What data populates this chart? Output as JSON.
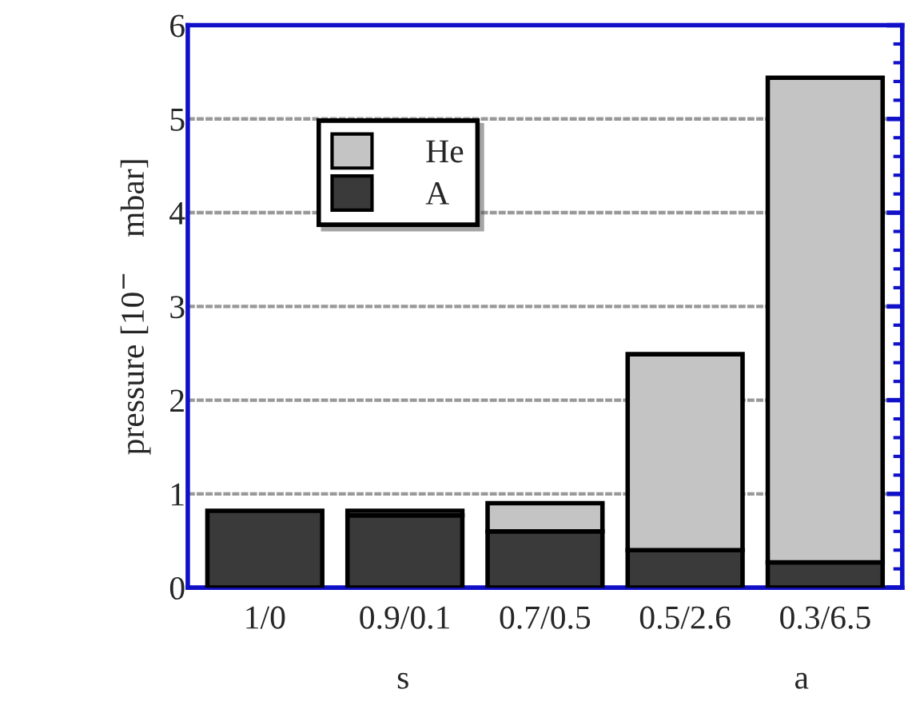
{
  "chart_data": {
    "type": "bar",
    "stacked": true,
    "categories": [
      "1/0",
      "0.9/0.1",
      "0.7/0.5",
      "0.5/2.6",
      "0.3/6.5"
    ],
    "series": [
      {
        "name": "A",
        "color": "#3a3a3a",
        "values": [
          0.82,
          0.77,
          0.6,
          0.4,
          0.27
        ]
      },
      {
        "name": "He",
        "color": "#c4c4c4",
        "values": [
          null,
          0.05,
          0.3,
          2.09,
          5.17
        ]
      }
    ],
    "ylabel": "pressure [10$^{−}$    mbar]",
    "annotations": [
      "s",
      "a"
    ],
    "ylim": [
      0,
      6
    ],
    "yticks": [
      0,
      1,
      2,
      3,
      4,
      5,
      6
    ],
    "grid": "y",
    "legend": "top left"
  }
}
